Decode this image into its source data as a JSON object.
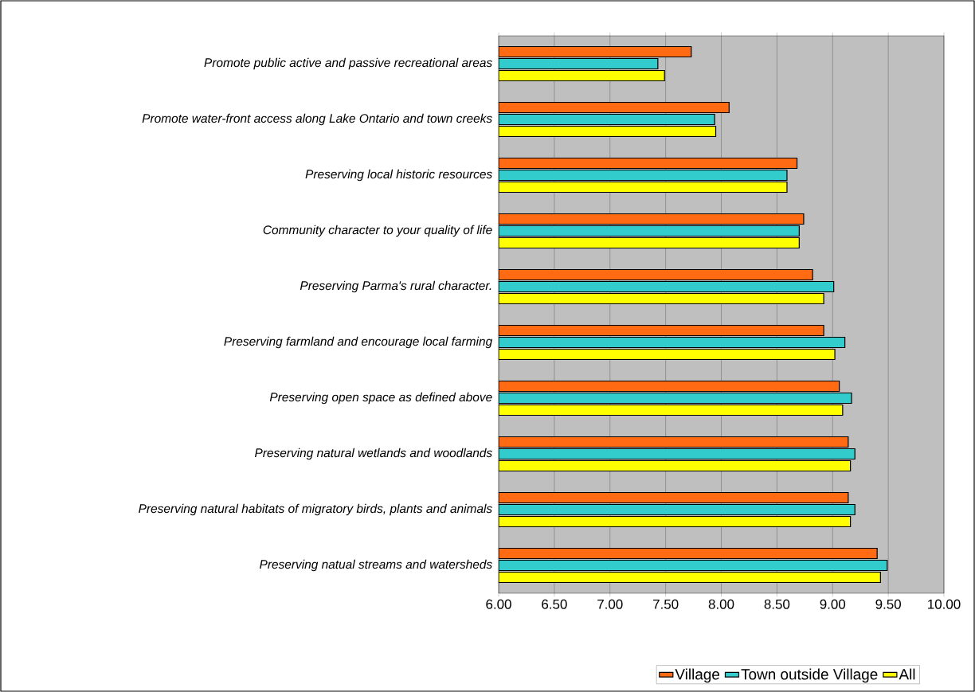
{
  "chart_data": {
    "type": "bar",
    "orientation": "horizontal",
    "categories": [
      "Promote public active and passive recreational areas",
      "Promote water-front access along Lake Ontario and town creeks",
      "Preserving local historic resources",
      "Community character to your quality of life",
      "Preserving Parma's rural character.",
      "Preserving farmland and encourage local farming",
      "Preserving open space as defined above",
      "Preserving natural wetlands and woodlands",
      "Preserving natural habitats of migratory birds, plants and animals",
      "Preserving natual streams and watersheds"
    ],
    "series": [
      {
        "name": "Village",
        "color": "#ff6a13",
        "values": [
          7.73,
          8.07,
          8.68,
          8.74,
          8.82,
          8.92,
          9.06,
          9.14,
          9.14,
          9.4
        ]
      },
      {
        "name": "Town outside Village",
        "color": "#33cccc",
        "values": [
          7.43,
          7.94,
          8.59,
          8.7,
          9.01,
          9.11,
          9.17,
          9.2,
          9.2,
          9.49
        ]
      },
      {
        "name": "All",
        "color": "#ffff00",
        "values": [
          7.49,
          7.95,
          8.59,
          8.7,
          8.92,
          9.02,
          9.09,
          9.16,
          9.16,
          9.43
        ]
      }
    ],
    "xlim": [
      6,
      10
    ],
    "xticks": [
      {
        "value": 6,
        "label": "6.00"
      },
      {
        "value": 6.5,
        "label": "6.50"
      },
      {
        "value": 7,
        "label": "7.00"
      },
      {
        "value": 7.5,
        "label": "7.50"
      },
      {
        "value": 8,
        "label": "8.00"
      },
      {
        "value": 8.5,
        "label": "8.50"
      },
      {
        "value": 9,
        "label": "9.00"
      },
      {
        "value": 9.5,
        "label": "9.50"
      },
      {
        "value": 10,
        "label": "10.00"
      }
    ],
    "grid": "x",
    "legend": "bottom"
  }
}
